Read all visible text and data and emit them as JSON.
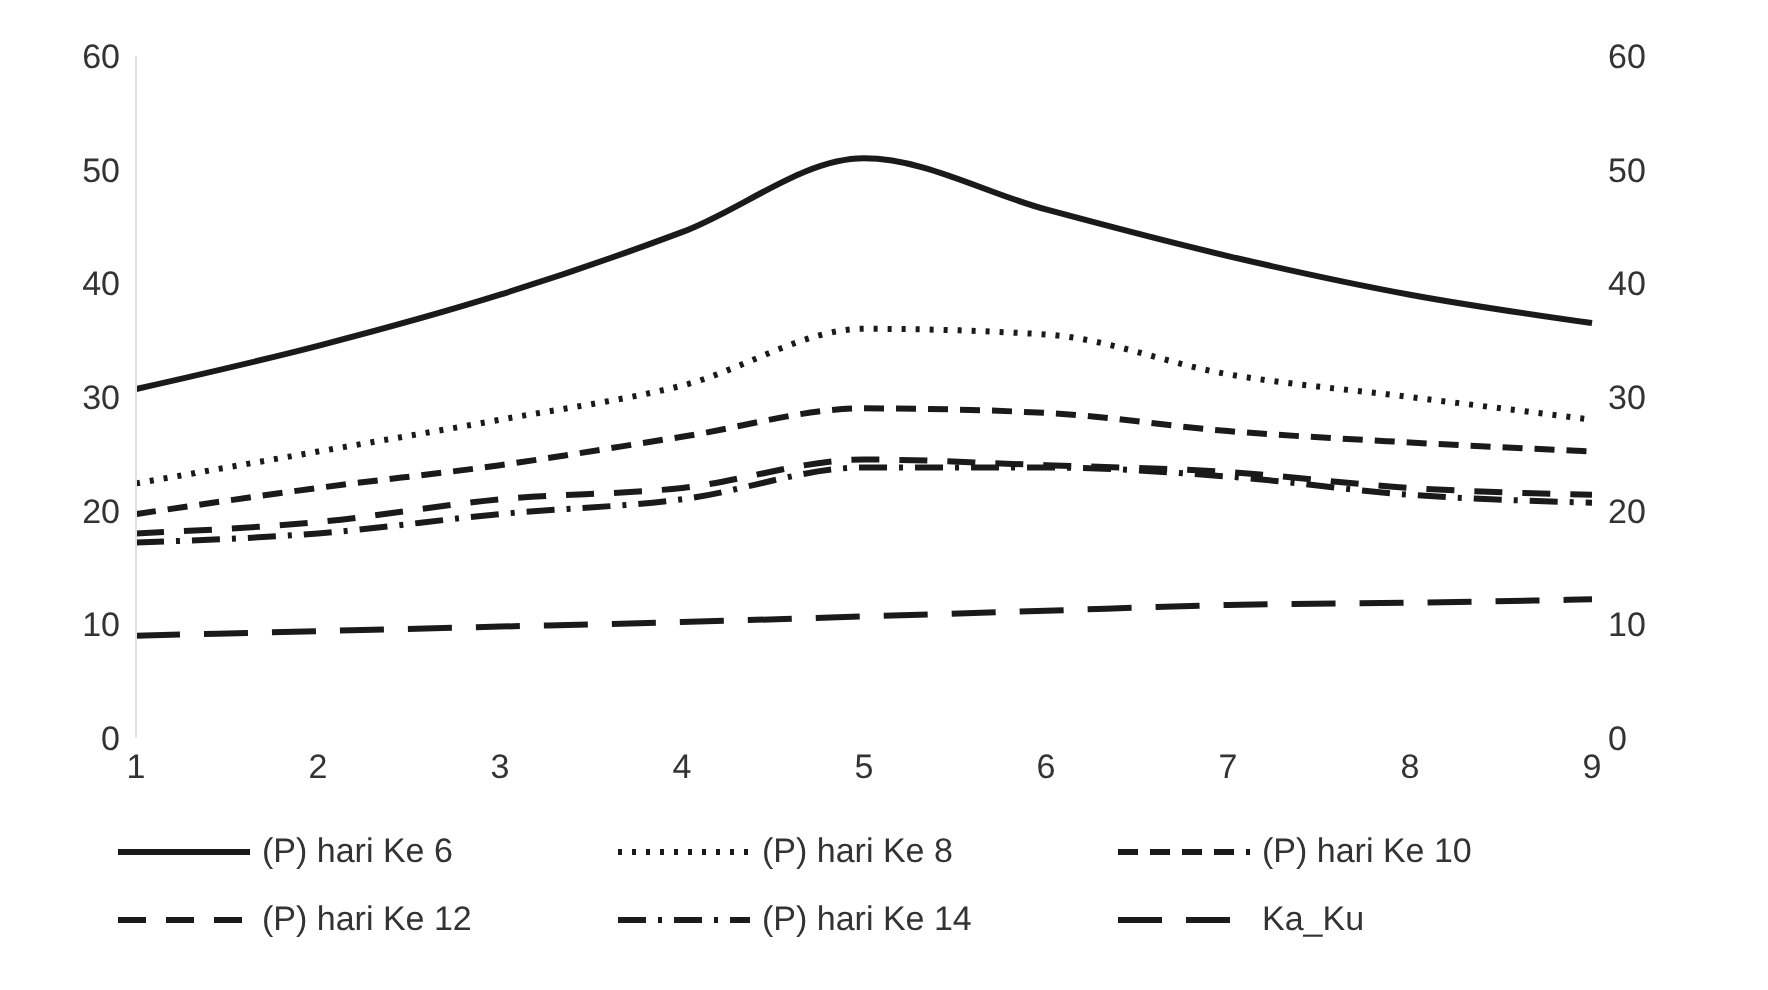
{
  "chart_data": {
    "type": "line",
    "categories": [
      "1",
      "2",
      "3",
      "4",
      "5",
      "6",
      "7",
      "8",
      "9"
    ],
    "series": [
      {
        "name": "(P) hari Ke 6",
        "color": "#1a1a1a",
        "line_style": "solid",
        "values": [
          30.7,
          34.5,
          39,
          44.5,
          51,
          46.5,
          42.4,
          39,
          36.5
        ]
      },
      {
        "name": "(P) hari Ke 8",
        "color": "#1a1a1a",
        "line_style": "dotted",
        "values": [
          22.4,
          25.2,
          28,
          31,
          36,
          35.5,
          32,
          30,
          28
        ]
      },
      {
        "name": "(P) hari Ke 10",
        "color": "#1a1a1a",
        "line_style": "dashed",
        "values": [
          19.7,
          22,
          24,
          26.5,
          29,
          28.6,
          27,
          26,
          25.2
        ]
      },
      {
        "name": "(P) hari Ke 12",
        "color": "#1a1a1a",
        "line_style": "dashed",
        "values": [
          18,
          19,
          21,
          22,
          24.5,
          24,
          23.4,
          22,
          21.4
        ]
      },
      {
        "name": "(P) hari Ke 14",
        "color": "#1a1a1a",
        "line_style": "dashed",
        "values": [
          17.2,
          18,
          19.7,
          21,
          23.8,
          23.8,
          23,
          21.4,
          20.7
        ]
      },
      {
        "name": "Ka_Ku",
        "color": "#1a1a1a",
        "line_style": "dashed",
        "values": [
          9,
          9.4,
          9.8,
          10.2,
          10.7,
          11.2,
          11.7,
          11.9,
          12.2
        ]
      }
    ],
    "ylim": [
      0,
      60
    ],
    "yticks": [
      0,
      10,
      20,
      30,
      40,
      50,
      60
    ],
    "y2lim": [
      0,
      60
    ],
    "y2ticks": [
      0,
      10,
      20,
      30,
      40,
      50,
      60
    ],
    "grid": false,
    "legend": "bottom",
    "marker": "none"
  }
}
